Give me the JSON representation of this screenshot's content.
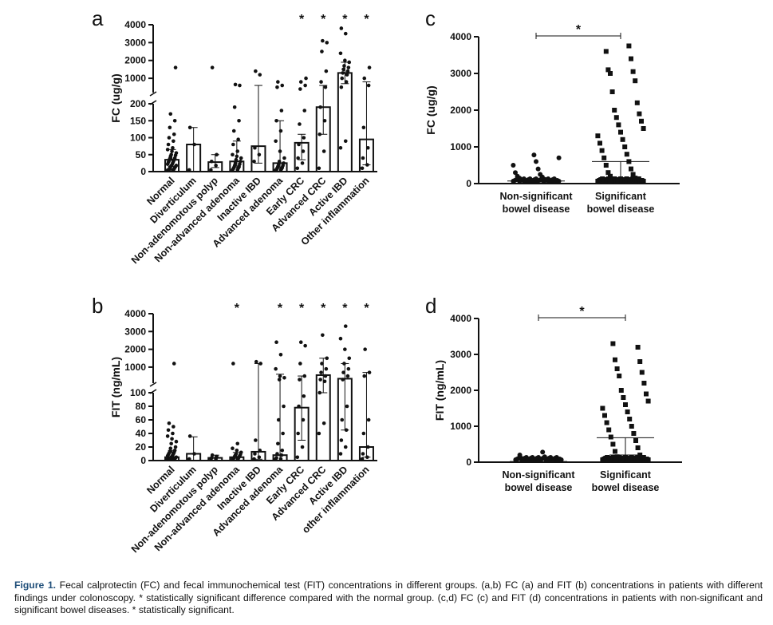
{
  "caption": {
    "label": "Figure 1.",
    "text": "Fecal calprotectin (FC) and fecal immunochemical test (FIT) concentrations in different groups. (a,b) FC (a) and FIT (b) concentrations in patients with different findings under colonoscopy. * statistically significant difference compared with the normal group. (c,d) FC (c) and FIT (d) concentrations in patients with non-significant and significant bowel diseases. * statistically significant."
  },
  "chart_data": [
    {
      "panel": "a",
      "type": "bar",
      "ylabel": "FC (ug/g)",
      "scale": "broken-y",
      "ylim_lower": [
        0,
        200
      ],
      "ylim_upper": [
        200,
        4000
      ],
      "yticks_lower": [
        0,
        50,
        100,
        150,
        200
      ],
      "yticks_upper": [
        1000,
        2000,
        3000,
        4000
      ],
      "categories": [
        "Normal",
        "Diverticulum",
        "Non-adenomotous polyp",
        "Non-advanced adenoma",
        "Inactive IBD",
        "Advanced adenoma",
        "Early CRC",
        "Advanced CRC",
        "Active IBD",
        "Other inflammation"
      ],
      "values": [
        35,
        80,
        28,
        30,
        75,
        25,
        85,
        190,
        1300,
        95
      ],
      "error_low": [
        15,
        0,
        12,
        12,
        25,
        10,
        35,
        110,
        700,
        20
      ],
      "error_high": [
        65,
        130,
        50,
        90,
        600,
        150,
        110,
        600,
        1900,
        800
      ],
      "significance": [
        "",
        "",
        "",
        "",
        "",
        "",
        "*",
        "*",
        "*",
        "*"
      ],
      "points": [
        [
          2,
          3,
          4,
          5,
          6,
          8,
          10,
          12,
          14,
          15,
          17,
          18,
          20,
          22,
          25,
          28,
          30,
          32,
          35,
          38,
          40,
          45,
          48,
          50,
          55,
          60,
          65,
          70,
          80,
          90,
          100,
          110,
          130,
          150,
          170,
          1600
        ],
        [
          5,
          80,
          130
        ],
        [
          5,
          18,
          30,
          50,
          1600
        ],
        [
          2,
          5,
          8,
          10,
          12,
          15,
          18,
          22,
          25,
          30,
          35,
          40,
          45,
          50,
          60,
          80,
          95,
          120,
          150,
          190,
          600,
          650
        ],
        [
          30,
          50,
          70,
          1200,
          1400
        ],
        [
          2,
          3,
          5,
          8,
          10,
          12,
          15,
          18,
          22,
          25,
          30,
          40,
          60,
          90,
          120,
          150,
          180,
          500,
          600,
          800
        ],
        [
          10,
          25,
          40,
          60,
          80,
          100,
          140,
          180,
          400,
          600,
          800,
          1000
        ],
        [
          10,
          60,
          110,
          150,
          190,
          500,
          800,
          1400,
          2500,
          3000,
          3100
        ],
        [
          70,
          90,
          500,
          800,
          1000,
          1200,
          1300,
          1400,
          1500,
          1600,
          1700,
          1900,
          2000,
          2400,
          3500,
          3800
        ],
        [
          10,
          20,
          40,
          70,
          130,
          600,
          1000,
          1600
        ]
      ]
    },
    {
      "panel": "b",
      "type": "bar",
      "ylabel": "FIT (ng/mL)",
      "scale": "broken-y",
      "ylim_lower": [
        0,
        100
      ],
      "ylim_upper": [
        100,
        4000
      ],
      "yticks_lower": [
        0,
        20,
        40,
        60,
        80,
        100
      ],
      "yticks_upper": [
        1000,
        2000,
        3000,
        4000
      ],
      "categories": [
        "Normal",
        "Diverticulum",
        "Non-adenomotous polyp",
        "Non-advanced adenoma",
        "Inactive IBD",
        "Advanced adenoma",
        "Early CRC",
        "Advanced CRC",
        "Active IBD",
        "other inflammation"
      ],
      "values": [
        5,
        10,
        4,
        5,
        13,
        8,
        78,
        550,
        350,
        20
      ],
      "error_low": [
        0,
        0,
        0,
        0,
        2,
        0,
        30,
        100,
        45,
        5
      ],
      "error_high": [
        15,
        35,
        8,
        12,
        1200,
        600,
        500,
        1500,
        1200,
        700
      ],
      "significance": [
        "",
        "",
        "",
        "*",
        "",
        "*",
        "*",
        "*",
        "*",
        "*"
      ],
      "points": [
        [
          0,
          0,
          0,
          1,
          1,
          2,
          2,
          3,
          3,
          4,
          5,
          5,
          6,
          7,
          8,
          9,
          10,
          11,
          12,
          13,
          15,
          18,
          20,
          25,
          28,
          32,
          36,
          40,
          45,
          50,
          55,
          1200
        ],
        [
          2,
          10,
          36
        ],
        [
          0,
          2,
          4,
          6,
          8
        ],
        [
          0,
          1,
          2,
          3,
          4,
          5,
          6,
          7,
          8,
          9,
          10,
          12,
          15,
          18,
          25,
          1200
        ],
        [
          2,
          5,
          10,
          15,
          30,
          1200,
          1300
        ],
        [
          0,
          2,
          4,
          8,
          10,
          15,
          25,
          40,
          60,
          80,
          300,
          400,
          500,
          900,
          1700,
          2400
        ],
        [
          5,
          20,
          40,
          60,
          80,
          95,
          300,
          500,
          1200,
          2200,
          2400
        ],
        [
          40,
          55,
          100,
          200,
          300,
          500,
          700,
          900,
          1200,
          1500,
          2800
        ],
        [
          10,
          20,
          30,
          45,
          60,
          80,
          300,
          500,
          700,
          900,
          1200,
          1500,
          2000,
          2600,
          3300
        ],
        [
          0,
          5,
          10,
          20,
          40,
          60,
          500,
          700,
          2000
        ]
      ]
    },
    {
      "panel": "c",
      "type": "scatter",
      "ylabel": "FC (ug/g)",
      "ylim": [
        0,
        4000
      ],
      "yticks": [
        0,
        1000,
        2000,
        3000,
        4000
      ],
      "categories": [
        "Non-significant bowel disease",
        "Significant bowel disease"
      ],
      "means": [
        70,
        600
      ],
      "sem_low": [
        40,
        150
      ],
      "significance": "*",
      "points": [
        [
          5,
          10,
          15,
          20,
          25,
          30,
          35,
          40,
          45,
          50,
          55,
          60,
          70,
          80,
          90,
          100,
          120,
          150,
          180,
          200,
          250,
          300,
          400,
          500,
          600,
          700,
          780
        ],
        [
          5,
          10,
          20,
          30,
          40,
          50,
          60,
          80,
          100,
          120,
          150,
          200,
          250,
          300,
          400,
          500,
          600,
          700,
          800,
          900,
          1000,
          1100,
          1200,
          1300,
          1400,
          1500,
          1600,
          1700,
          1800,
          1900,
          2000,
          2200,
          2500,
          2800,
          3000,
          3050,
          3100,
          3400,
          3600,
          3750
        ]
      ]
    },
    {
      "panel": "d",
      "type": "scatter",
      "ylabel": "FIT (ng/mL)",
      "ylim": [
        0,
        4000
      ],
      "yticks": [
        0,
        1000,
        2000,
        3000,
        4000
      ],
      "categories": [
        "Non-significant bowel disease",
        "Significant bowel disease"
      ],
      "means": [
        20,
        680
      ],
      "sem_low": [
        10,
        200
      ],
      "significance": "*",
      "points": [
        [
          0,
          2,
          4,
          5,
          6,
          8,
          10,
          12,
          15,
          18,
          20,
          25,
          30,
          40,
          50,
          60,
          80,
          100,
          150,
          200,
          280
        ],
        [
          0,
          5,
          10,
          20,
          30,
          40,
          60,
          80,
          100,
          150,
          200,
          300,
          400,
          500,
          600,
          700,
          800,
          900,
          1000,
          1100,
          1200,
          1300,
          1400,
          1500,
          1600,
          1700,
          1800,
          1900,
          2000,
          2200,
          2400,
          2500,
          2600,
          2800,
          2850,
          3200,
          3300
        ]
      ]
    }
  ]
}
